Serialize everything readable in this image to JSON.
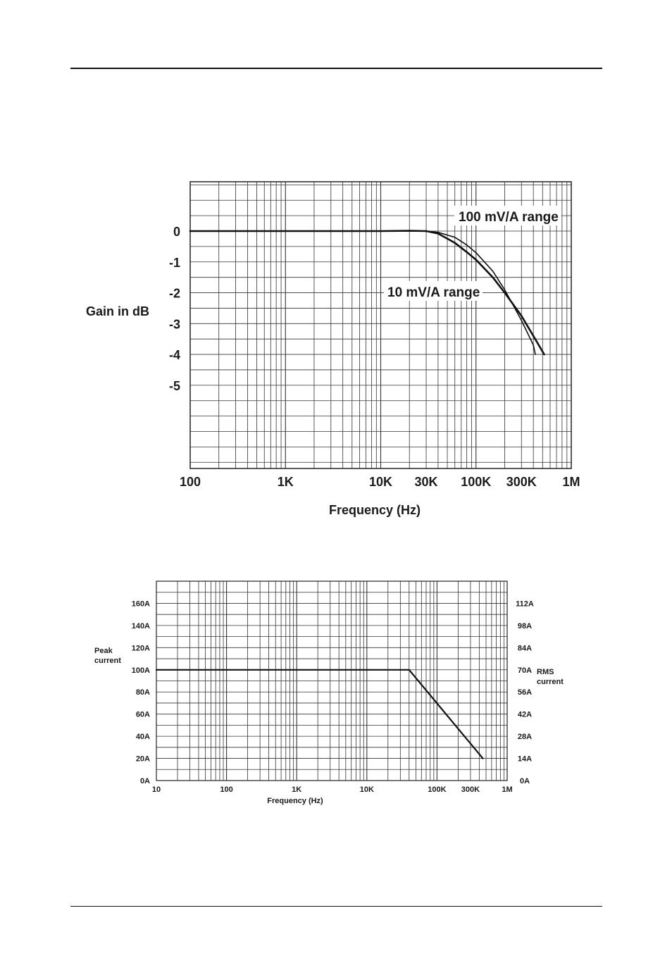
{
  "chart_data": [
    {
      "type": "line",
      "title": "",
      "xlabel": "Frequency (Hz)",
      "ylabel": "Gain in dB",
      "x_scale": "log",
      "xlim": [
        100,
        1000000
      ],
      "ylim": [
        -7.7,
        1.6
      ],
      "x_ticks": [
        {
          "value": 100,
          "label": "100"
        },
        {
          "value": 1000,
          "label": "1K"
        },
        {
          "value": 10000,
          "label": "10K"
        },
        {
          "value": 30000,
          "label": "30K"
        },
        {
          "value": 100000,
          "label": "100K"
        },
        {
          "value": 300000,
          "label": "300K"
        },
        {
          "value": 1000000,
          "label": "1M"
        }
      ],
      "y_ticks": [
        {
          "value": 0,
          "label": "0"
        },
        {
          "value": -1,
          "label": "-1"
        },
        {
          "value": -2,
          "label": "-2"
        },
        {
          "value": -3,
          "label": "-3"
        },
        {
          "value": -4,
          "label": "-4"
        },
        {
          "value": -5,
          "label": "-5"
        }
      ],
      "grid": true,
      "series": [
        {
          "name": "100 mV/A range",
          "x": [
            100,
            1000,
            10000,
            20000,
            30000,
            40000,
            60000,
            80000,
            100000,
            150000,
            200000,
            300000,
            400000,
            420000
          ],
          "y": [
            0,
            0,
            0,
            0.01,
            0,
            -0.04,
            -0.2,
            -0.45,
            -0.7,
            -1.3,
            -1.9,
            -2.9,
            -3.7,
            -4.0
          ]
        },
        {
          "name": "10 mV/A range",
          "x": [
            100,
            1000,
            10000,
            20000,
            30000,
            40000,
            60000,
            80000,
            100000,
            150000,
            200000,
            300000,
            400000,
            520000
          ],
          "y": [
            0,
            0,
            0,
            0.01,
            0,
            -0.08,
            -0.38,
            -0.68,
            -0.93,
            -1.5,
            -2.0,
            -2.75,
            -3.4,
            -4.0
          ]
        }
      ],
      "annotations": [
        "100 mV/A range",
        "10 mV/A range"
      ]
    },
    {
      "type": "line",
      "title": "",
      "xlabel": "Frequency (Hz)",
      "ylabel": "Peak current",
      "y2label": "RMS current",
      "x_scale": "log",
      "xlim": [
        10,
        1000000
      ],
      "ylim": [
        0,
        180
      ],
      "x_ticks": [
        {
          "value": 10,
          "label": "10"
        },
        {
          "value": 100,
          "label": "100"
        },
        {
          "value": 1000,
          "label": "1K"
        },
        {
          "value": 10000,
          "label": "10K"
        },
        {
          "value": 100000,
          "label": "100K"
        },
        {
          "value": 300000,
          "label": "300K"
        },
        {
          "value": 1000000,
          "label": "1M"
        }
      ],
      "y_ticks": [
        {
          "value": 0,
          "label": "0A"
        },
        {
          "value": 20,
          "label": "20A"
        },
        {
          "value": 40,
          "label": "40A"
        },
        {
          "value": 60,
          "label": "60A"
        },
        {
          "value": 80,
          "label": "80A"
        },
        {
          "value": 100,
          "label": "100A"
        },
        {
          "value": 120,
          "label": "120A"
        },
        {
          "value": 140,
          "label": "140A"
        },
        {
          "value": 160,
          "label": "160A"
        }
      ],
      "y2_ticks": [
        {
          "value": 0,
          "label": "0A"
        },
        {
          "value": 20,
          "label": "14A"
        },
        {
          "value": 40,
          "label": "28A"
        },
        {
          "value": 60,
          "label": "42A"
        },
        {
          "value": 80,
          "label": "56A"
        },
        {
          "value": 100,
          "label": "70A"
        },
        {
          "value": 120,
          "label": "84A"
        },
        {
          "value": 140,
          "label": "98A"
        },
        {
          "value": 160,
          "label": "112A"
        }
      ],
      "grid": true,
      "series": [
        {
          "x": [
            10,
            40000,
            450000
          ],
          "y": [
            100,
            100,
            20
          ]
        }
      ]
    }
  ]
}
